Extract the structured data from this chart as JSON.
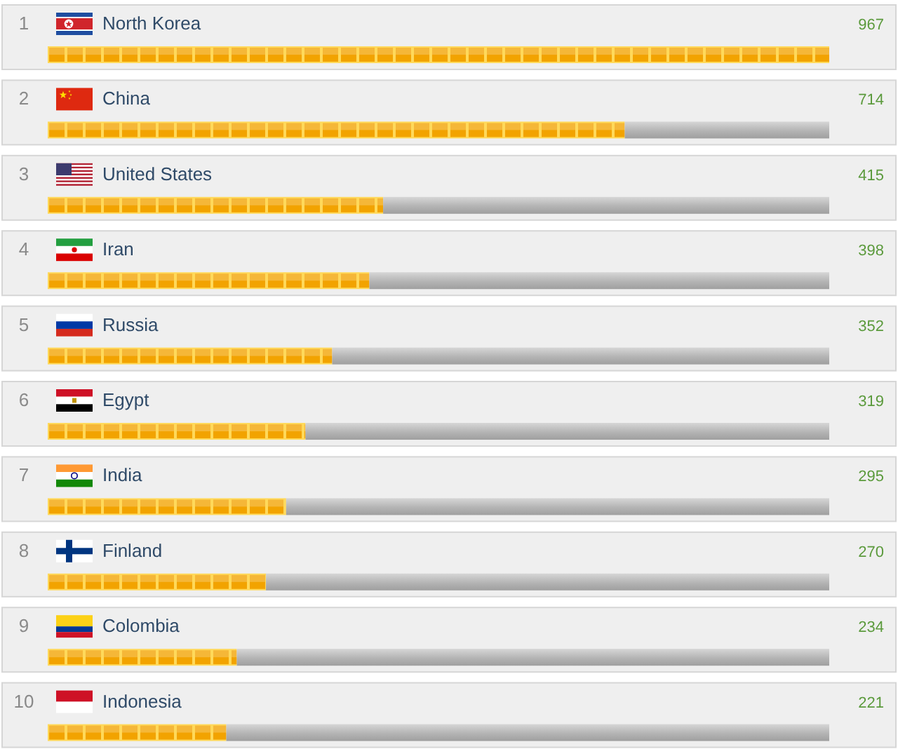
{
  "chart_data": {
    "type": "bar",
    "orientation": "horizontal",
    "stacked": true,
    "categories": [
      "North Korea",
      "China",
      "United States",
      "Iran",
      "Russia",
      "Egypt",
      "India",
      "Finland",
      "Colombia",
      "Indonesia"
    ],
    "series": [
      {
        "color": "#f2a300",
        "values": [
          967,
          714,
          415,
          398,
          352,
          319,
          295,
          270,
          234,
          221
        ],
        "value_labels": [
          "967",
          "714",
          "415",
          "398",
          "352",
          "319",
          "295",
          "270",
          "234",
          "221"
        ]
      },
      {
        "color": "#b4b4b4",
        "values": [
          null,
          253,
          552,
          569,
          615,
          648,
          672,
          697,
          733,
          746
        ]
      }
    ],
    "tick_labels": "y",
    "annotations": [
      "1",
      "2",
      "3",
      "4",
      "5",
      "6",
      "7",
      "8",
      "9",
      "10"
    ]
  }
}
